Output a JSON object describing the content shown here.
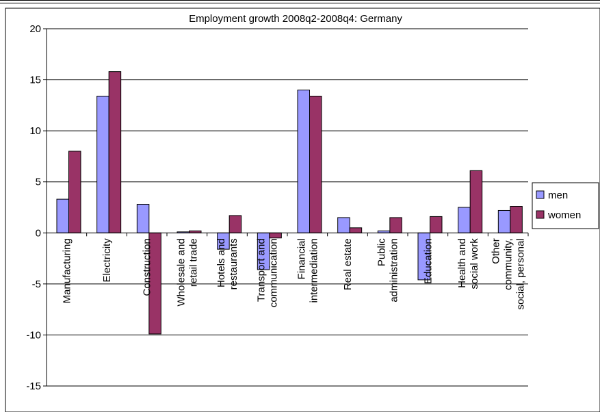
{
  "chart_data": {
    "type": "bar",
    "title": "Employment growth 2008q2-2008q4: Germany",
    "xlabel": "",
    "ylabel": "",
    "ylim": [
      -15,
      20
    ],
    "yticks": [
      20,
      15,
      10,
      5,
      0,
      -5,
      -10,
      -15
    ],
    "grid": true,
    "legend_position": "right",
    "categories": [
      [
        "Manufacturing"
      ],
      [
        "Electricity"
      ],
      [
        "Construction"
      ],
      [
        "Wholesale and",
        "retail trade"
      ],
      [
        "Hotels and",
        "restaurants"
      ],
      [
        "Transport and",
        "communication"
      ],
      [
        "Financial",
        "intermediation"
      ],
      [
        "Real estate"
      ],
      [
        "Public",
        "administration"
      ],
      [
        "Education"
      ],
      [
        "Health and",
        "social work"
      ],
      [
        "Other",
        "community,",
        "social, personal"
      ]
    ],
    "series": [
      {
        "name": "men",
        "color": "#9999ff",
        "values": [
          3.3,
          13.4,
          2.8,
          0.1,
          -1.6,
          -3.6,
          14.0,
          1.5,
          0.2,
          -4.6,
          2.5,
          2.2
        ]
      },
      {
        "name": "women",
        "color": "#993366",
        "values": [
          8.0,
          15.8,
          -9.9,
          0.2,
          1.7,
          -0.5,
          13.4,
          0.5,
          1.5,
          1.6,
          6.1,
          2.6
        ]
      }
    ]
  }
}
